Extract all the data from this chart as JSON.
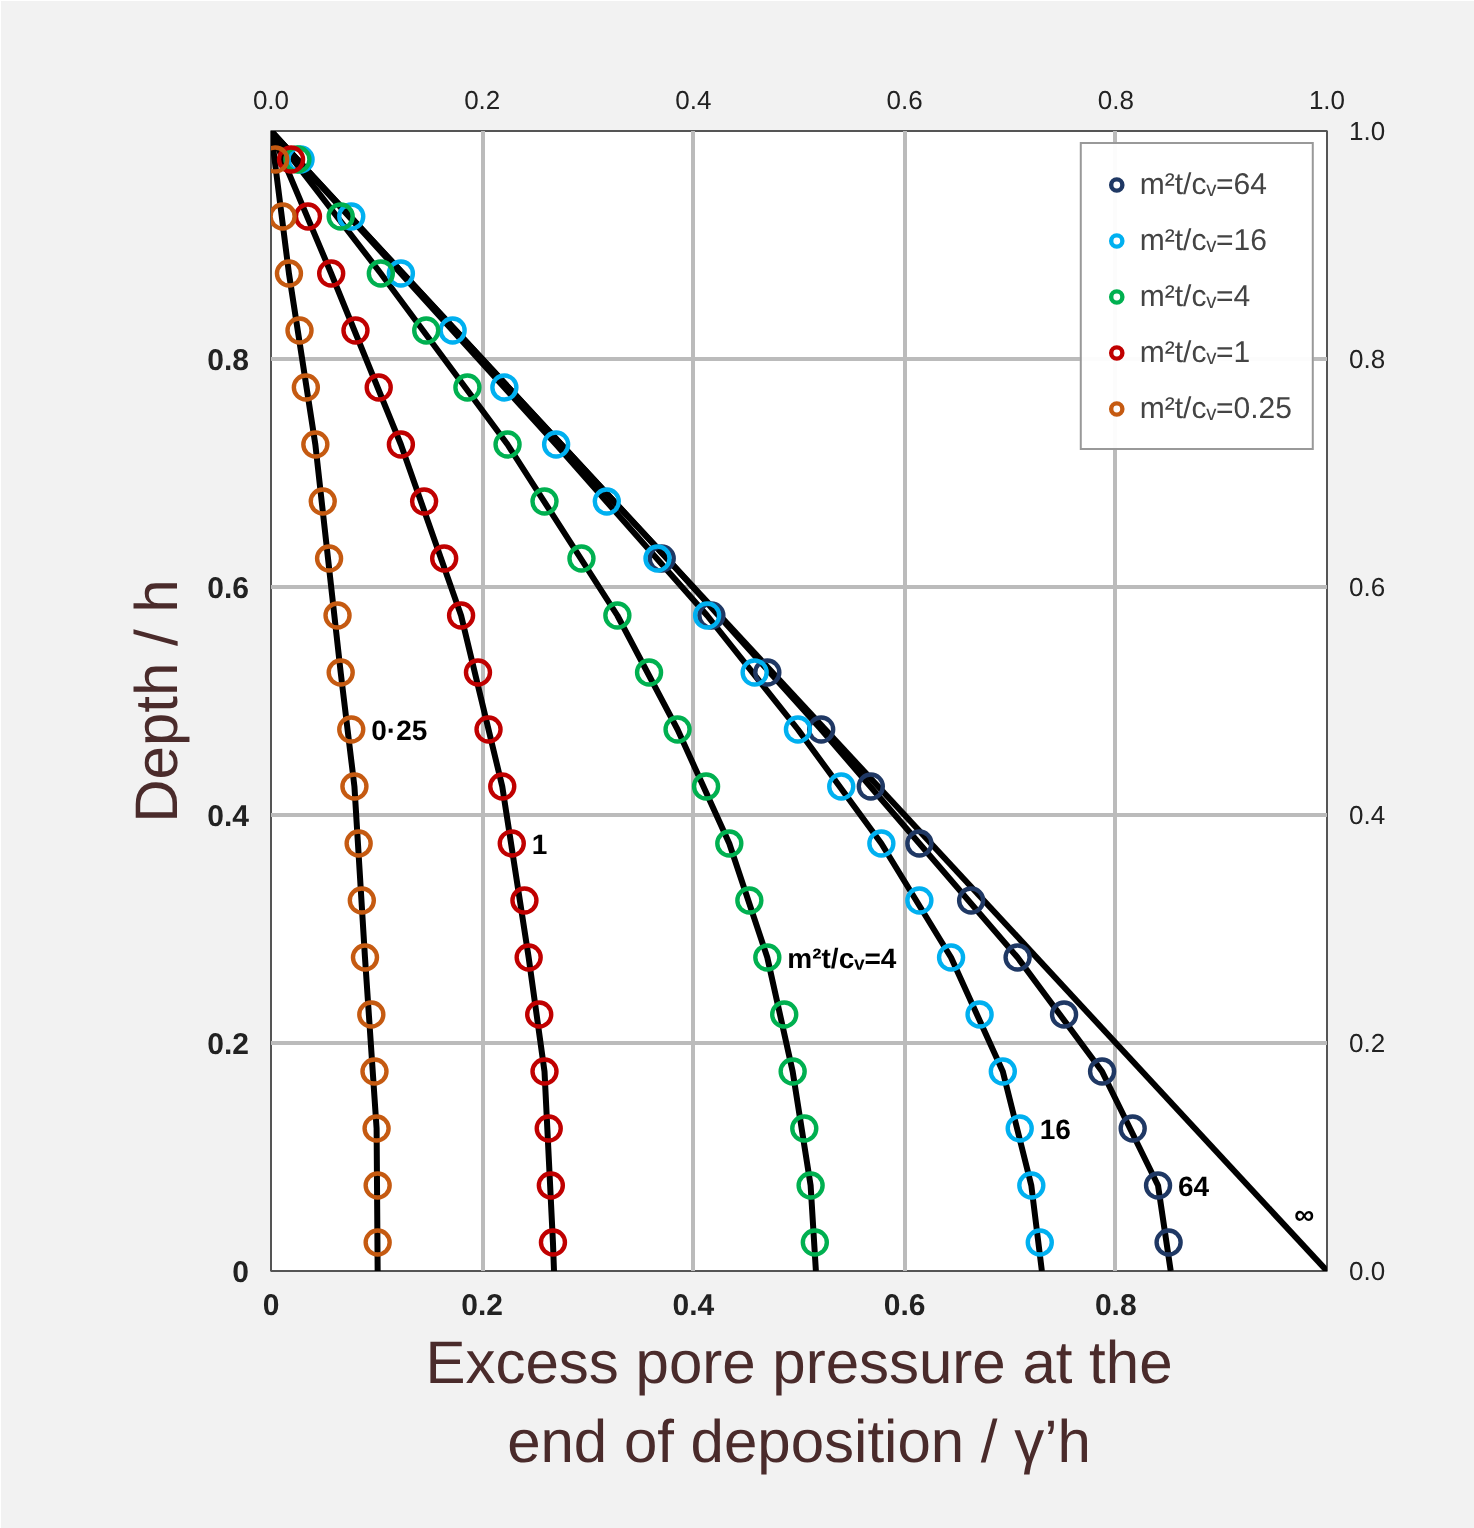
{
  "chart_data": {
    "type": "scatter",
    "xlabel": "Excess pore pressure at the end of deposition / γ’h",
    "ylabel": "Depth / h",
    "xlim": [
      0,
      1
    ],
    "ylim": [
      0,
      1
    ],
    "xticks": [
      0,
      0.2,
      0.4,
      0.6,
      0.8
    ],
    "x2lim": [
      0,
      1
    ],
    "x2ticks": [
      {
        "value": 0,
        "label": "0.0"
      },
      {
        "value": 0.2,
        "label": "0.2"
      },
      {
        "value": 0.4,
        "label": "0.4"
      },
      {
        "value": 0.6,
        "label": "0.6"
      },
      {
        "value": 0.8,
        "label": "0.8"
      },
      {
        "value": 1,
        "label": "1.0"
      }
    ],
    "yticks": [
      0,
      0.2,
      0.4,
      0.6,
      0.8
    ],
    "y2lim": [
      0,
      1
    ],
    "y2ticks": [
      {
        "value": 0,
        "label": "0.0"
      },
      {
        "value": 0.2,
        "label": "0.2"
      },
      {
        "value": 0.4,
        "label": "0.4"
      },
      {
        "value": 0.6,
        "label": "0.6"
      },
      {
        "value": 0.8,
        "label": "0.8"
      },
      {
        "value": 1,
        "label": "1.0"
      }
    ],
    "grid": true,
    "legend": "top right",
    "marker": "circle",
    "series": [
      {
        "type": "line",
        "color": "#000000",
        "marker": "none",
        "x": [
          0,
          0.017,
          0.042,
          0.066,
          0.079,
          0.089,
          0.1,
          0.101
        ],
        "values": [
          1,
          0.875,
          0.725,
          0.525,
          0.425,
          0.275,
          0.125,
          0
        ]
      },
      {
        "type": "line",
        "color": "#000000",
        "marker": "none",
        "x": [
          0,
          0.057,
          0.123,
          0.18,
          0.219,
          0.244,
          0.259,
          0.267,
          0.268
        ],
        "values": [
          1,
          0.875,
          0.725,
          0.575,
          0.425,
          0.275,
          0.175,
          0.025,
          0
        ]
      },
      {
        "type": "line",
        "color": "#000000",
        "marker": "none",
        "x": [
          0,
          0.104,
          0.224,
          0.328,
          0.385,
          0.434,
          0.47,
          0.494,
          0.511,
          0.516
        ],
        "values": [
          1,
          0.875,
          0.725,
          0.575,
          0.475,
          0.375,
          0.275,
          0.175,
          0.075,
          0
        ]
      },
      {
        "type": "line",
        "color": "#000000",
        "marker": "none",
        "x": [
          0,
          0.123,
          0.27,
          0.413,
          0.499,
          0.578,
          0.644,
          0.693,
          0.72,
          0.73
        ],
        "values": [
          1,
          0.875,
          0.725,
          0.575,
          0.475,
          0.375,
          0.275,
          0.175,
          0.075,
          0
        ]
      },
      {
        "type": "line",
        "color": "#000000",
        "marker": "none",
        "x": [
          0,
          0.38,
          0.521,
          0.614,
          0.707,
          0.787,
          0.84,
          0.852
        ],
        "values": [
          1,
          0.62,
          0.475,
          0.375,
          0.275,
          0.175,
          0.075,
          0
        ]
      },
      {
        "type": "line",
        "color": "#000000",
        "marker": "none",
        "x": [
          0,
          1
        ],
        "values": [
          1,
          0
        ]
      },
      {
        "name": "m²t/cᵥ=64",
        "color": "#1f3864",
        "x": [
          0.37,
          0.417,
          0.47,
          0.521,
          0.568,
          0.614,
          0.663,
          0.707,
          0.751,
          0.787,
          0.816,
          0.84,
          0.85
        ],
        "values": [
          0.625,
          0.575,
          0.525,
          0.475,
          0.425,
          0.375,
          0.325,
          0.275,
          0.225,
          0.175,
          0.125,
          0.075,
          0.025
        ]
      },
      {
        "name": "m²t/cᵥ=16",
        "color": "#00b0f0",
        "x": [
          0.028,
          0.076,
          0.123,
          0.172,
          0.221,
          0.27,
          0.318,
          0.366,
          0.413,
          0.458,
          0.499,
          0.54,
          0.578,
          0.614,
          0.644,
          0.671,
          0.693,
          0.709,
          0.72,
          0.728
        ],
        "values": [
          0.975,
          0.925,
          0.875,
          0.825,
          0.775,
          0.725,
          0.675,
          0.625,
          0.575,
          0.525,
          0.475,
          0.425,
          0.375,
          0.325,
          0.275,
          0.225,
          0.175,
          0.125,
          0.075,
          0.025
        ]
      },
      {
        "name": "m²t/cᵥ=4",
        "color": "#00b050",
        "x": [
          0.025,
          0.066,
          0.104,
          0.147,
          0.186,
          0.224,
          0.259,
          0.294,
          0.328,
          0.358,
          0.385,
          0.412,
          0.434,
          0.453,
          0.47,
          0.486,
          0.494,
          0.505,
          0.511,
          0.515
        ],
        "values": [
          0.975,
          0.925,
          0.875,
          0.825,
          0.775,
          0.725,
          0.675,
          0.625,
          0.575,
          0.525,
          0.475,
          0.425,
          0.375,
          0.325,
          0.275,
          0.225,
          0.175,
          0.125,
          0.075,
          0.025
        ]
      },
      {
        "name": "m²t/cᵥ=1",
        "color": "#c00000",
        "x": [
          0.019,
          0.035,
          0.057,
          0.08,
          0.102,
          0.123,
          0.145,
          0.164,
          0.18,
          0.196,
          0.206,
          0.219,
          0.228,
          0.24,
          0.244,
          0.254,
          0.259,
          0.263,
          0.265,
          0.267
        ],
        "values": [
          0.975,
          0.925,
          0.875,
          0.825,
          0.775,
          0.725,
          0.675,
          0.625,
          0.575,
          0.525,
          0.475,
          0.425,
          0.375,
          0.325,
          0.275,
          0.225,
          0.175,
          0.125,
          0.075,
          0.025
        ]
      },
      {
        "name": "m²t/cᵥ=0.25",
        "color": "#c55a11",
        "x": [
          0.004,
          0.011,
          0.017,
          0.027,
          0.033,
          0.042,
          0.049,
          0.055,
          0.063,
          0.066,
          0.076,
          0.079,
          0.083,
          0.086,
          0.089,
          0.095,
          0.098,
          0.1,
          0.101,
          0.101
        ],
        "values": [
          0.975,
          0.925,
          0.875,
          0.825,
          0.775,
          0.725,
          0.675,
          0.625,
          0.575,
          0.525,
          0.475,
          0.425,
          0.375,
          0.325,
          0.275,
          0.225,
          0.175,
          0.125,
          0.075,
          0.025
        ]
      }
    ],
    "annotations": [
      {
        "text": "0·25",
        "x": 0.076,
        "y": 0.475
      },
      {
        "text": "1",
        "x": 0.228,
        "y": 0.375
      },
      {
        "text": "m²t/cᵥ=4",
        "x": 0.47,
        "y": 0.275
      },
      {
        "text": "16",
        "x": 0.709,
        "y": 0.125
      },
      {
        "text": "64",
        "x": 0.84,
        "y": 0.075
      },
      {
        "text": "∞",
        "x": 0.95,
        "y": 0.05
      }
    ]
  }
}
